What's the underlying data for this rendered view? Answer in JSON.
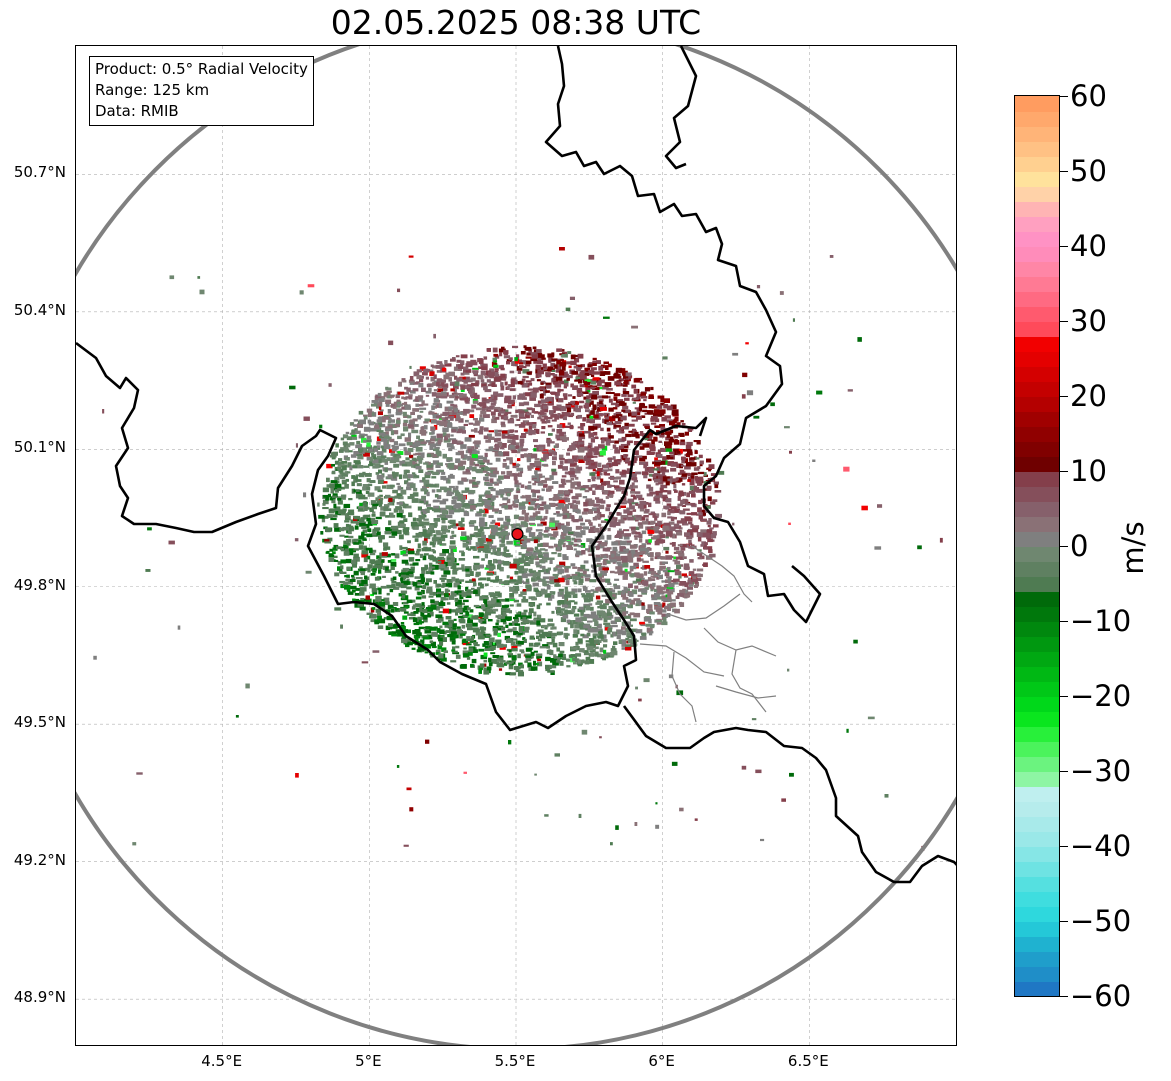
{
  "title": "02.05.2025 08:38 UTC",
  "info_box": {
    "product": "Product: 0.5° Radial Velocity",
    "range": "Range: 125 km",
    "source": "Data: RMIB"
  },
  "map": {
    "lon_range": [
      4.0,
      7.0
    ],
    "lat_range": [
      48.8,
      50.98
    ],
    "lat_ticks": [
      "50.7°N",
      "50.4°N",
      "50.1°N",
      "49.8°N",
      "49.5°N",
      "49.2°N",
      "48.9°N"
    ],
    "lat_values": [
      50.7,
      50.4,
      50.1,
      49.8,
      49.5,
      49.2,
      48.9
    ],
    "lon_ticks": [
      "4.5°E",
      "5°E",
      "5.5°E",
      "6°E",
      "6.5°E"
    ],
    "lon_values": [
      4.5,
      5.0,
      5.5,
      6.0,
      6.5
    ],
    "radar_site": {
      "lon": 5.505,
      "lat": 49.915,
      "color": "#e8141b"
    },
    "range_ring_km": 125,
    "grid": true,
    "colors": {
      "border": "#000000",
      "admin_lines": "#808080",
      "range_ring": "#808080",
      "grid": "#b0b0b0"
    }
  },
  "colorbar": {
    "unit": "m/s",
    "min": -60,
    "max": 60,
    "ticks": [
      "60",
      "50",
      "40",
      "30",
      "20",
      "10",
      "0",
      "−10",
      "−20",
      "−30",
      "−40",
      "−50",
      "−60"
    ],
    "tick_values": [
      60,
      50,
      40,
      30,
      20,
      10,
      0,
      -10,
      -20,
      -30,
      -40,
      -50,
      -60
    ],
    "stops": [
      {
        "from": -60,
        "to": -58,
        "color": "#1f77c4"
      },
      {
        "from": -58,
        "to": -56,
        "color": "#1f8ec8"
      },
      {
        "from": -56,
        "to": -54,
        "color": "#1f9ecb"
      },
      {
        "from": -54,
        "to": -52,
        "color": "#1fb2d0"
      },
      {
        "from": -52,
        "to": -50,
        "color": "#24c8d8"
      },
      {
        "from": -50,
        "to": -48,
        "color": "#2ed8dd"
      },
      {
        "from": -48,
        "to": -46,
        "color": "#3fdddf"
      },
      {
        "from": -46,
        "to": -44,
        "color": "#55e0e0"
      },
      {
        "from": -44,
        "to": -42,
        "color": "#6ee3e3"
      },
      {
        "from": -42,
        "to": -40,
        "color": "#86e6e6"
      },
      {
        "from": -40,
        "to": -38,
        "color": "#9ae8e8"
      },
      {
        "from": -38,
        "to": -36,
        "color": "#a8eaea"
      },
      {
        "from": -36,
        "to": -34,
        "color": "#b6ecec"
      },
      {
        "from": -34,
        "to": -32,
        "color": "#bfefef"
      },
      {
        "from": -32,
        "to": -30,
        "color": "#8ef5a4"
      },
      {
        "from": -30,
        "to": -28,
        "color": "#6bf37f"
      },
      {
        "from": -28,
        "to": -26,
        "color": "#4bf35c"
      },
      {
        "from": -26,
        "to": -24,
        "color": "#28f03a"
      },
      {
        "from": -24,
        "to": -22,
        "color": "#0ae61e"
      },
      {
        "from": -22,
        "to": -20,
        "color": "#00d81a"
      },
      {
        "from": -20,
        "to": -18,
        "color": "#00c817"
      },
      {
        "from": -18,
        "to": -16,
        "color": "#00b814"
      },
      {
        "from": -16,
        "to": -14,
        "color": "#00a812"
      },
      {
        "from": -14,
        "to": -12,
        "color": "#009810"
      },
      {
        "from": -12,
        "to": -10,
        "color": "#00880e"
      },
      {
        "from": -10,
        "to": -8,
        "color": "#00780c"
      },
      {
        "from": -8,
        "to": -6,
        "color": "#006a0a"
      },
      {
        "from": -6,
        "to": -4,
        "color": "#4f7b52"
      },
      {
        "from": -4,
        "to": -2,
        "color": "#5f8061"
      },
      {
        "from": -2,
        "to": 0,
        "color": "#6f8770"
      },
      {
        "from": 0,
        "to": 2,
        "color": "#7f7f7f"
      },
      {
        "from": 2,
        "to": 4,
        "color": "#8a7176"
      },
      {
        "from": 4,
        "to": 6,
        "color": "#86606b"
      },
      {
        "from": 6,
        "to": 8,
        "color": "#854f5b"
      },
      {
        "from": 8,
        "to": 10,
        "color": "#843f4b"
      },
      {
        "from": 10,
        "to": 12,
        "color": "#6f0000"
      },
      {
        "from": 12,
        "to": 14,
        "color": "#800000"
      },
      {
        "from": 14,
        "to": 16,
        "color": "#900000"
      },
      {
        "from": 16,
        "to": 18,
        "color": "#a00000"
      },
      {
        "from": 18,
        "to": 20,
        "color": "#b40000"
      },
      {
        "from": 20,
        "to": 22,
        "color": "#c40000"
      },
      {
        "from": 22,
        "to": 24,
        "color": "#d40000"
      },
      {
        "from": 24,
        "to": 26,
        "color": "#e40000"
      },
      {
        "from": 26,
        "to": 28,
        "color": "#f20000"
      },
      {
        "from": 28,
        "to": 30,
        "color": "#ff4a5a"
      },
      {
        "from": 30,
        "to": 32,
        "color": "#ff5a6e"
      },
      {
        "from": 32,
        "to": 34,
        "color": "#ff6a82"
      },
      {
        "from": 34,
        "to": 36,
        "color": "#ff7a94"
      },
      {
        "from": 36,
        "to": 38,
        "color": "#ff86a6"
      },
      {
        "from": 38,
        "to": 40,
        "color": "#ff8cba"
      },
      {
        "from": 40,
        "to": 42,
        "color": "#ff92c4"
      },
      {
        "from": 42,
        "to": 44,
        "color": "#ffa0c0"
      },
      {
        "from": 44,
        "to": 46,
        "color": "#ffb4b4"
      },
      {
        "from": 46,
        "to": 48,
        "color": "#ffd2a8"
      },
      {
        "from": 48,
        "to": 50,
        "color": "#ffe29c"
      },
      {
        "from": 50,
        "to": 52,
        "color": "#ffd090"
      },
      {
        "from": 52,
        "to": 54,
        "color": "#ffc184"
      },
      {
        "from": 54,
        "to": 56,
        "color": "#ffb478"
      },
      {
        "from": 56,
        "to": 58,
        "color": "#ffa86c"
      },
      {
        "from": 58,
        "to": 60,
        "color": "#ff9c60"
      }
    ]
  }
}
